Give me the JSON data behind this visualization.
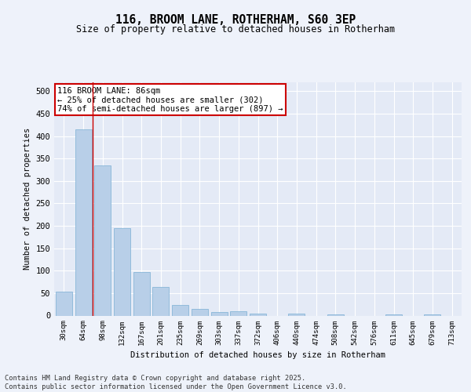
{
  "title": "116, BROOM LANE, ROTHERHAM, S60 3EP",
  "subtitle": "Size of property relative to detached houses in Rotherham",
  "xlabel": "Distribution of detached houses by size in Rotherham",
  "ylabel": "Number of detached properties",
  "categories": [
    "30sqm",
    "64sqm",
    "98sqm",
    "132sqm",
    "167sqm",
    "201sqm",
    "235sqm",
    "269sqm",
    "303sqm",
    "337sqm",
    "372sqm",
    "406sqm",
    "440sqm",
    "474sqm",
    "508sqm",
    "542sqm",
    "576sqm",
    "611sqm",
    "645sqm",
    "679sqm",
    "713sqm"
  ],
  "values": [
    53,
    415,
    335,
    195,
    97,
    63,
    23,
    14,
    8,
    9,
    5,
    0,
    4,
    0,
    2,
    0,
    0,
    3,
    0,
    2,
    0
  ],
  "bar_color": "#b8cfe8",
  "bar_edge_color": "#7aafd4",
  "vline_x": 1.5,
  "vline_color": "#cc0000",
  "annotation_text": "116 BROOM LANE: 86sqm\n← 25% of detached houses are smaller (302)\n74% of semi-detached houses are larger (897) →",
  "annotation_box_color": "#cc0000",
  "background_color": "#eef2fa",
  "plot_bg_color": "#e4eaf6",
  "footer_text": "Contains HM Land Registry data © Crown copyright and database right 2025.\nContains public sector information licensed under the Open Government Licence v3.0.",
  "ylim": [
    0,
    520
  ],
  "yticks": [
    0,
    50,
    100,
    150,
    200,
    250,
    300,
    350,
    400,
    450,
    500
  ]
}
